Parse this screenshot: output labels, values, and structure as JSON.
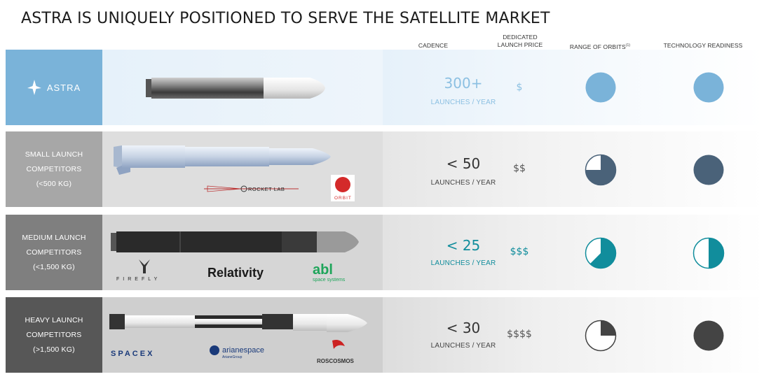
{
  "title": "ASTRA IS UNIQUELY POSITIONED TO SERVE THE SATELLITE MARKET",
  "headers": {
    "cadence": "CADENCE",
    "price_line1": "DEDICATED",
    "price_line2": "LAUNCH PRICE",
    "orbits": "RANGE OF ORBITS",
    "orbits_note": "(1)",
    "readiness": "TECHNOLOGY READINESS"
  },
  "rows": [
    {
      "brand": "ASTRA",
      "cadence": "300+",
      "cadence_unit": "LAUNCHES / YEAR",
      "price": "$",
      "orbits_fraction": 1.0,
      "readiness_fraction": 1.0,
      "color": "#7ab3d9",
      "text_color": "#8cc0e2"
    },
    {
      "label_line1": "SMALL LAUNCH",
      "label_line2": "COMPETITORS",
      "label_line3": "(<500 KG)",
      "cadence": "< 50",
      "cadence_unit": "LAUNCHES / YEAR",
      "price": "$$",
      "orbits_fraction": 0.75,
      "readiness_fraction": 1.0,
      "color": "#4a6279",
      "logos": {
        "rocketlab": "ROCKET LAB",
        "virgin_orbit": "ORBIT"
      }
    },
    {
      "label_line1": "MEDIUM LAUNCH",
      "label_line2": "COMPETITORS",
      "label_line3": "(<1,500 KG)",
      "cadence": "< 25",
      "cadence_unit": "LAUNCHES / YEAR",
      "price": "$$$",
      "orbits_fraction": 0.625,
      "readiness_fraction": 0.5,
      "color": "#118d9c",
      "logos": {
        "firefly": "FIREFLY",
        "relativity": "Relativity",
        "abl": "abl",
        "abl_sub": "space systems"
      }
    },
    {
      "label_line1": "HEAVY LAUNCH",
      "label_line2": "COMPETITORS",
      "label_line3": "(>1,500 KG)",
      "cadence": "< 30",
      "cadence_unit": "LAUNCHES / YEAR",
      "price": "$$$$",
      "orbits_fraction": 0.25,
      "readiness_fraction": 1.0,
      "color": "#444444",
      "logos": {
        "spacex": "SPACEX",
        "arianespace": "arianespace",
        "ariane_sub": "ArianeGroup",
        "roscosmos": "ROSCOSMOS"
      }
    }
  ]
}
